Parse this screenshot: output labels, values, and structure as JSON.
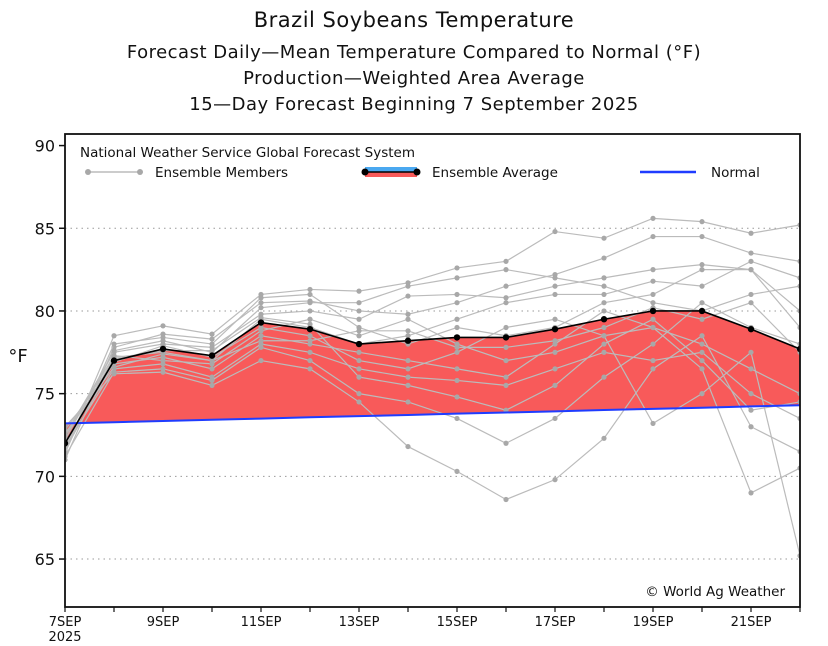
{
  "chart_data": {
    "type": "line",
    "title": "Brazil Soybeans Temperature",
    "subtitles": [
      "Forecast Daily—Mean Temperature Compared to Normal (°F)",
      "Production—Weighted Area Average",
      "15—Day Forecast Beginning 7 September 2025"
    ],
    "ylabel": "°F",
    "xlabel": "",
    "ylim": [
      62.1,
      90.7
    ],
    "yticks": [
      65,
      70,
      75,
      80,
      85,
      90
    ],
    "grid": "horizontal dotted",
    "x": [
      "7SEP",
      "8SEP",
      "9SEP",
      "10SEP",
      "11SEP",
      "12SEP",
      "13SEP",
      "14SEP",
      "15SEP",
      "16SEP",
      "17SEP",
      "18SEP",
      "19SEP",
      "20SEP",
      "21SEP",
      "22SEP"
    ],
    "xtick_labels": [
      "7SEP",
      "9SEP",
      "11SEP",
      "13SEP",
      "15SEP",
      "17SEP",
      "19SEP",
      "21SEP"
    ],
    "xtick_year": "2025",
    "legend": {
      "placement": "top",
      "heading": "National Weather Service Global Forecast System",
      "members_label": "Ensemble Members",
      "average_label": "Ensemble Average",
      "normal_label": "Normal"
    },
    "copyright": "© World Ag Weather",
    "colors": {
      "members": "#bbbbbb",
      "member_dots": "#a8a8a8",
      "average": "#000000",
      "above_normal_fill": "#f85a5a",
      "normal": "#1f3cff",
      "legend_blue": "#4aa8f0"
    },
    "ensemble_average": [
      72.0,
      77.0,
      77.7,
      77.3,
      79.3,
      78.9,
      78.0,
      78.2,
      78.4,
      78.4,
      78.9,
      79.5,
      80.0,
      80.0,
      78.9,
      77.7
    ],
    "normal": [
      73.2,
      73.27,
      73.35,
      73.42,
      73.49,
      73.57,
      73.64,
      73.71,
      73.79,
      73.86,
      73.93,
      74.01,
      74.08,
      74.15,
      74.23,
      74.3
    ],
    "ensemble_members": [
      [
        71.5,
        78.5,
        79.1,
        78.6,
        81.0,
        81.3,
        81.2,
        81.7,
        82.6,
        83.0,
        84.8,
        84.4,
        85.6,
        85.4,
        84.7,
        85.2
      ],
      [
        71.0,
        77.8,
        78.6,
        78.3,
        80.5,
        80.6,
        80.0,
        79.8,
        80.5,
        81.5,
        82.2,
        83.2,
        84.5,
        84.5,
        83.5,
        83.0
      ],
      [
        72.5,
        77.5,
        78.0,
        77.8,
        79.8,
        80.0,
        79.5,
        80.9,
        81.0,
        80.8,
        81.5,
        82.0,
        82.5,
        82.8,
        82.5,
        80.0
      ],
      [
        72.0,
        77.2,
        77.5,
        77.0,
        79.5,
        79.0,
        78.0,
        78.5,
        79.5,
        80.5,
        81.0,
        81.0,
        81.8,
        81.5,
        83.0,
        82.0
      ],
      [
        72.8,
        76.8,
        77.2,
        76.5,
        78.5,
        78.0,
        77.5,
        77.0,
        76.5,
        76.0,
        78.0,
        80.0,
        79.0,
        78.0,
        76.5,
        75.0
      ],
      [
        71.8,
        76.5,
        76.8,
        76.0,
        78.0,
        77.5,
        76.5,
        76.0,
        75.8,
        75.5,
        76.5,
        77.5,
        77.0,
        77.5,
        75.0,
        73.5
      ],
      [
        71.2,
        76.3,
        76.5,
        75.8,
        77.8,
        77.0,
        75.0,
        74.5,
        73.5,
        72.0,
        73.5,
        76.0,
        78.0,
        80.5,
        79.0,
        78.0
      ],
      [
        73.0,
        76.2,
        76.3,
        75.5,
        77.0,
        76.5,
        74.5,
        71.8,
        70.3,
        68.6,
        69.8,
        72.3,
        76.5,
        78.5,
        73.0,
        71.5
      ],
      [
        72.2,
        77.6,
        78.2,
        77.5,
        80.2,
        80.5,
        80.5,
        81.5,
        82.0,
        82.5,
        82.0,
        81.5,
        80.5,
        80.0,
        81.0,
        81.5
      ],
      [
        71.6,
        76.9,
        77.9,
        77.2,
        79.0,
        78.5,
        77.0,
        76.5,
        77.5,
        79.0,
        79.5,
        78.5,
        79.0,
        76.5,
        69.0,
        70.5
      ],
      [
        72.4,
        77.3,
        77.0,
        76.8,
        78.8,
        79.5,
        78.5,
        79.5,
        78.0,
        77.0,
        77.5,
        78.5,
        73.2,
        75.0,
        77.5,
        65.2
      ],
      [
        71.4,
        78.0,
        78.4,
        78.0,
        80.8,
        81.0,
        79.0,
        78.0,
        79.0,
        78.5,
        79.0,
        80.5,
        81.0,
        82.5,
        82.5,
        79.0
      ],
      [
        72.6,
        76.6,
        77.4,
        77.0,
        78.2,
        78.2,
        78.8,
        78.8,
        77.8,
        77.8,
        78.2,
        79.0,
        80.2,
        79.5,
        80.5,
        77.5
      ],
      [
        71.9,
        77.1,
        77.6,
        77.6,
        79.6,
        79.2,
        76.0,
        75.5,
        74.8,
        74.0,
        75.5,
        78.0,
        79.5,
        77.0,
        74.0,
        74.5
      ]
    ]
  }
}
